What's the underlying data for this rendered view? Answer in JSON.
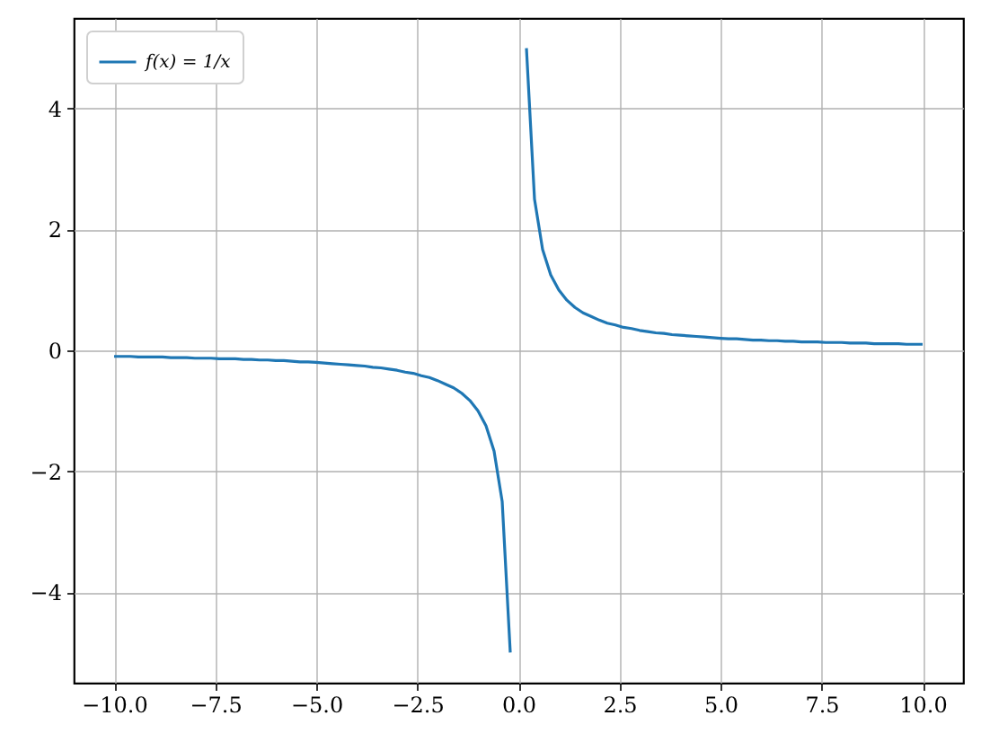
{
  "chart_data": {
    "type": "line",
    "x": [
      -10,
      -9.8,
      -9.6,
      -9.4,
      -9.2,
      -9,
      -8.8,
      -8.6,
      -8.4,
      -8.2,
      -8,
      -7.8,
      -7.6,
      -7.4,
      -7.2,
      -7,
      -6.8,
      -6.6,
      -6.4,
      -6.2,
      -6,
      -5.8,
      -5.6,
      -5.4,
      -5.2,
      -5,
      -4.8,
      -4.6,
      -4.4,
      -4.2,
      -4,
      -3.8,
      -3.6,
      -3.4,
      -3.2,
      -3,
      -2.8,
      -2.6,
      -2.4,
      -2.2,
      -2,
      -1.8,
      -1.6,
      -1.4,
      -1.2,
      -1,
      -0.8,
      -0.6,
      -0.4,
      -0.2,
      0,
      0.2,
      0.4,
      0.6,
      0.8,
      1,
      1.2,
      1.4,
      1.6,
      1.8,
      2,
      2.2,
      2.4,
      2.6,
      2.8,
      3,
      3.2,
      3.4,
      3.6,
      3.8,
      4,
      4.2,
      4.4,
      4.6,
      4.8,
      5,
      5.2,
      5.4,
      5.6,
      5.8,
      6,
      6.2,
      6.4,
      6.6,
      6.8,
      7,
      7.2,
      7.4,
      7.6,
      7.8,
      8,
      8.2,
      8.4,
      8.6,
      8.8,
      9,
      9.2,
      9.4,
      9.6,
      9.8,
      10
    ],
    "series": [
      {
        "name": "f(x) = 1/x",
        "color": "#1f77b4",
        "values": [
          -0.1,
          -0.1,
          -0.1,
          -0.11,
          -0.11,
          -0.11,
          -0.11,
          -0.12,
          -0.12,
          -0.12,
          -0.13,
          -0.13,
          -0.13,
          -0.14,
          -0.14,
          -0.14,
          -0.15,
          -0.15,
          -0.16,
          -0.16,
          -0.17,
          -0.17,
          -0.18,
          -0.19,
          -0.19,
          -0.2,
          -0.21,
          -0.22,
          -0.23,
          -0.24,
          -0.25,
          -0.26,
          -0.28,
          -0.29,
          -0.31,
          -0.33,
          -0.36,
          -0.38,
          -0.42,
          -0.45,
          -0.5,
          -0.56,
          -0.62,
          -0.71,
          -0.83,
          -1.0,
          -1.25,
          -1.67,
          -2.5,
          -5.0,
          null,
          5.0,
          2.5,
          1.67,
          1.25,
          1.0,
          0.83,
          0.71,
          0.62,
          0.56,
          0.5,
          0.45,
          0.42,
          0.38,
          0.36,
          0.33,
          0.31,
          0.29,
          0.28,
          0.26,
          0.25,
          0.24,
          0.23,
          0.22,
          0.21,
          0.2,
          0.19,
          0.19,
          0.18,
          0.17,
          0.17,
          0.16,
          0.16,
          0.15,
          0.15,
          0.14,
          0.14,
          0.14,
          0.13,
          0.13,
          0.13,
          0.12,
          0.12,
          0.12,
          0.11,
          0.11,
          0.11,
          0.11,
          0.1,
          0.1,
          0.1
        ]
      }
    ],
    "xlim": [
      -11,
      11
    ],
    "ylim": [
      -5.5,
      5.5
    ],
    "xticks": [
      {
        "value": -10,
        "label": "−10.0"
      },
      {
        "value": -7.5,
        "label": "−7.5"
      },
      {
        "value": -5,
        "label": "−5.0"
      },
      {
        "value": -2.5,
        "label": "−2.5"
      },
      {
        "value": 0,
        "label": "0.0"
      },
      {
        "value": 2.5,
        "label": "2.5"
      },
      {
        "value": 5,
        "label": "5.0"
      },
      {
        "value": 7.5,
        "label": "7.5"
      },
      {
        "value": 10,
        "label": "10.0"
      }
    ],
    "yticks": [
      {
        "value": -4,
        "label": "−4"
      },
      {
        "value": -2,
        "label": "−2"
      },
      0,
      2,
      4
    ],
    "grid": true,
    "legend": "top left",
    "marker": "none",
    "line_style": "solid"
  }
}
